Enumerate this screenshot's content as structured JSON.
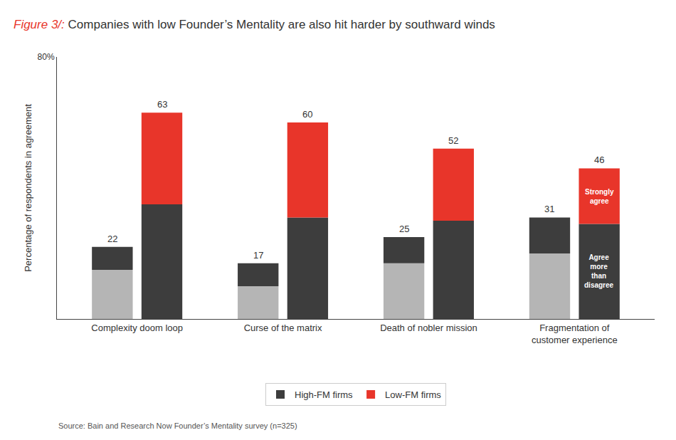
{
  "chart_data": {
    "type": "bar",
    "stacked": true,
    "figure_label": "Figure 3/:",
    "figure_label_color": "#e8352a",
    "title": "Companies with low Founder’s Mentality are also hit harder by southward winds",
    "ylabel": "Percentage of respondents in agreement",
    "categories": [
      "Complexity doom loop",
      "Curse of the matrix",
      "Death of nobler mission",
      "Fragmentation of\ncustomer experience"
    ],
    "series": [
      {
        "name": "High-FM firms",
        "segments": [
          {
            "color": "#b5b5b5",
            "values": [
              15,
              10,
              17,
              20
            ]
          },
          {
            "color": "#3d3d3d",
            "values": [
              7,
              7,
              8,
              11
            ]
          }
        ],
        "totals": [
          22,
          17,
          25,
          31
        ]
      },
      {
        "name": "Low-FM firms",
        "segments": [
          {
            "color": "#3d3d3d",
            "values": [
              35,
              31,
              30,
              29
            ],
            "labels": [
              null,
              null,
              null,
              "Agree\nmore\nthan\ndisagree"
            ]
          },
          {
            "color": "#e8352a",
            "values": [
              28,
              29,
              22,
              17
            ],
            "labels": [
              null,
              null,
              null,
              "Strongly\nagree"
            ]
          }
        ],
        "totals": [
          63,
          60,
          52,
          46
        ]
      }
    ],
    "ylim": [
      0,
      80
    ],
    "yticks": [
      {
        "value": 80,
        "label": "80%"
      }
    ],
    "grid": false,
    "legend": "bottom",
    "data_labels": true,
    "source": "Source: Bain and Research Now Founder’s Mentality survey (n=325)"
  }
}
